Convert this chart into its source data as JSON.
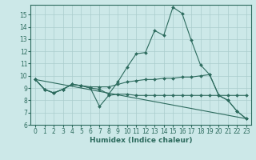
{
  "xlabel": "Humidex (Indice chaleur)",
  "background_color": "#cce8e8",
  "line_color": "#2d6b5e",
  "grid_color": "#aacccc",
  "xlim": [
    -0.5,
    23.5
  ],
  "ylim": [
    6,
    15.8
  ],
  "yticks": [
    6,
    7,
    8,
    9,
    10,
    11,
    12,
    13,
    14,
    15
  ],
  "xticks": [
    0,
    1,
    2,
    3,
    4,
    5,
    6,
    7,
    8,
    9,
    10,
    11,
    12,
    13,
    14,
    15,
    16,
    17,
    18,
    19,
    20,
    21,
    22,
    23
  ],
  "line1_x": [
    0,
    1,
    2,
    3,
    4,
    5,
    6,
    7,
    8,
    9,
    10,
    11,
    12,
    13,
    14,
    15,
    16,
    17,
    18,
    19,
    20,
    21,
    22,
    23
  ],
  "line1_y": [
    9.7,
    8.9,
    8.6,
    8.9,
    9.3,
    9.2,
    9.0,
    8.9,
    8.5,
    9.5,
    10.7,
    11.8,
    11.9,
    13.7,
    13.3,
    15.6,
    15.1,
    12.9,
    10.9,
    10.1,
    8.4,
    8.0,
    7.1,
    6.5
  ],
  "line2_x": [
    0,
    1,
    2,
    3,
    4,
    5,
    6,
    7,
    8,
    9,
    10,
    11,
    12,
    13,
    14,
    15,
    16,
    17,
    18,
    19,
    20,
    21,
    22,
    23
  ],
  "line2_y": [
    9.7,
    8.9,
    8.6,
    8.9,
    9.3,
    9.2,
    9.0,
    7.5,
    8.4,
    8.5,
    8.5,
    8.4,
    8.4,
    8.4,
    8.4,
    8.4,
    8.4,
    8.4,
    8.4,
    8.4,
    8.4,
    8.4,
    8.4,
    8.4
  ],
  "line3_x": [
    0,
    1,
    2,
    3,
    4,
    5,
    6,
    7,
    8,
    9,
    10,
    11,
    12,
    13,
    14,
    15,
    16,
    17,
    18,
    19,
    20,
    21,
    22,
    23
  ],
  "line3_y": [
    9.7,
    8.9,
    8.6,
    8.9,
    9.3,
    9.2,
    9.1,
    9.1,
    9.1,
    9.3,
    9.5,
    9.6,
    9.7,
    9.7,
    9.8,
    9.8,
    9.9,
    9.9,
    10.0,
    10.1,
    8.4,
    8.0,
    7.1,
    6.5
  ],
  "line4_x": [
    0,
    23
  ],
  "line4_y": [
    9.7,
    6.5
  ],
  "tick_fontsize": 5.5,
  "xlabel_fontsize": 6.5,
  "font_color": "#2d6b5e"
}
